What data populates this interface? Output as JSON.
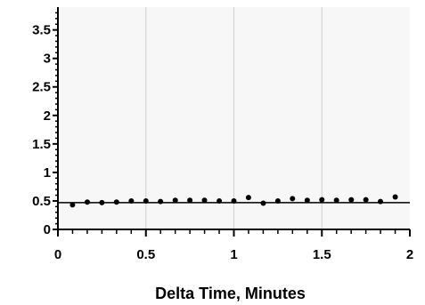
{
  "chart_data": {
    "type": "scatter",
    "title": "",
    "xlabel": "Delta Time, Minutes",
    "ylabel": "",
    "xlim": [
      0,
      2
    ],
    "ylim": [
      0,
      3.9
    ],
    "x_ticks": [
      0,
      0.5,
      1,
      1.5,
      2
    ],
    "x_tick_labels": [
      "0",
      "0.5",
      "1",
      "1.5",
      "2"
    ],
    "y_ticks": [
      0,
      0.5,
      1,
      1.5,
      2,
      2.5,
      3,
      3.5
    ],
    "y_tick_labels": [
      "0",
      "0.5",
      "1",
      "1.5",
      "2",
      "2.5",
      "3",
      "3.5"
    ],
    "grid": "vertical",
    "reference_line_y": 0.47,
    "series": [
      {
        "x": [
          0.083,
          0.167,
          0.25,
          0.333,
          0.417,
          0.5,
          0.583,
          0.667,
          0.75,
          0.833,
          0.917,
          1.0,
          1.083,
          1.167,
          1.25,
          1.333,
          1.417,
          1.5,
          1.583,
          1.667,
          1.75,
          1.833,
          1.917
        ],
        "y": [
          0.43,
          0.48,
          0.47,
          0.48,
          0.5,
          0.5,
          0.49,
          0.51,
          0.51,
          0.51,
          0.5,
          0.5,
          0.56,
          0.46,
          0.5,
          0.54,
          0.51,
          0.52,
          0.51,
          0.52,
          0.52,
          0.49,
          0.57
        ]
      }
    ],
    "colors": {
      "plot_background": "#f7f7f7",
      "gridline": "#cfcfcf",
      "marker": "#000000",
      "reference_line": "#000000"
    }
  }
}
